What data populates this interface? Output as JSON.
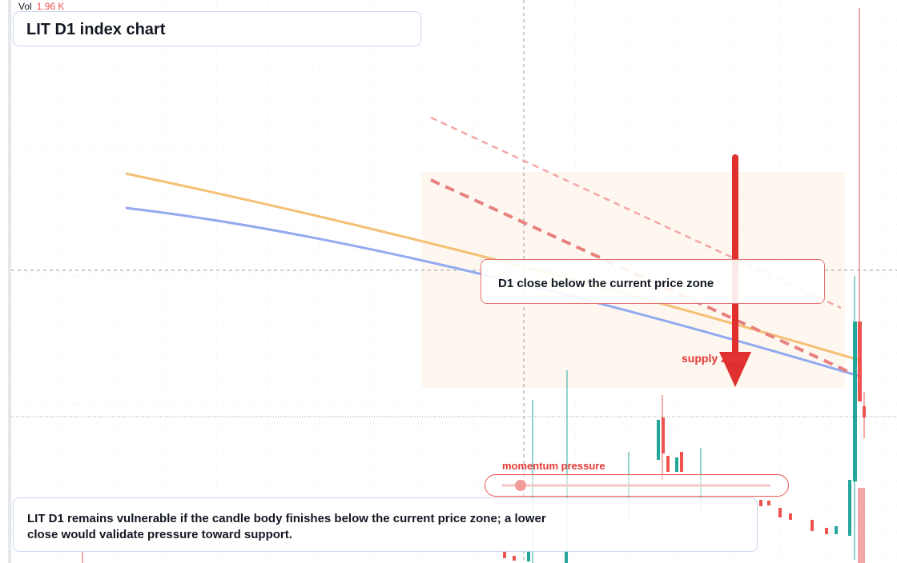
{
  "header": {
    "vol_label": "Vol",
    "vol_value": "1.96 K",
    "title": "LIT D1 index chart"
  },
  "annotations": {
    "callout": "D1 close below the current price zone",
    "zone_label": "supply zone",
    "momentum_label": "momentum pressure",
    "summary": "LIT D1 remains vulnerable if the candle body finishes below the current price zone; a lower close would validate pressure toward support."
  }
}
